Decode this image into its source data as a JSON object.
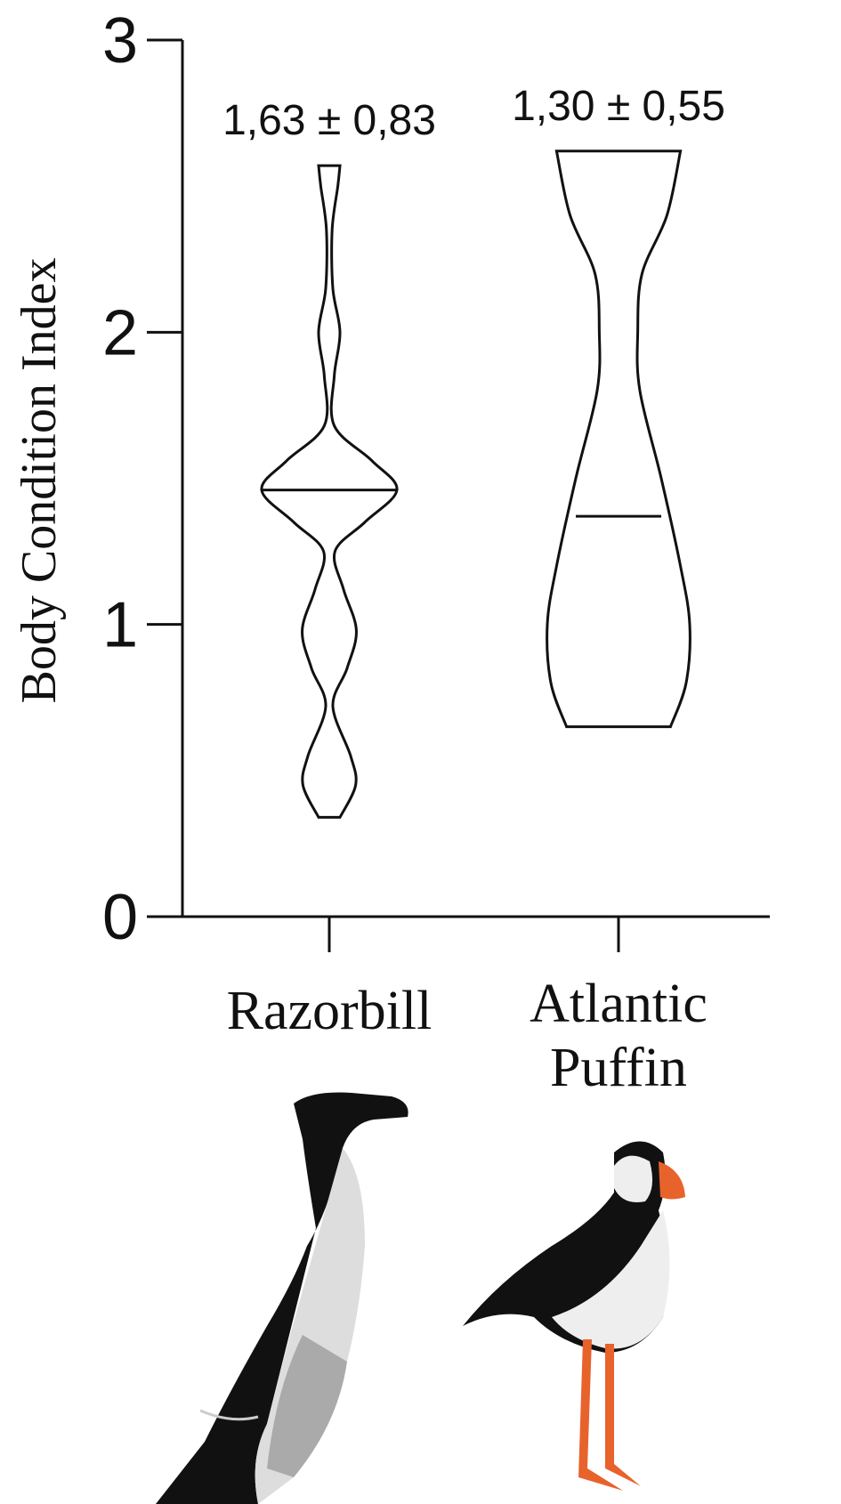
{
  "chart_data": {
    "type": "violin",
    "y_label": "Body Condition Index",
    "ylim": [
      0,
      3
    ],
    "yticks": [
      0,
      1,
      2,
      3
    ],
    "categories": [
      "Razorbill",
      "Atlantic Puffin"
    ],
    "annotations": [
      "1,63 ± 0,83",
      "1,30 ± 0,55"
    ],
    "groups": [
      {
        "min": 0.34,
        "max": 2.57,
        "median": 1.46,
        "profile_y": [
          0.34,
          0.45,
          0.55,
          0.72,
          0.85,
          0.98,
          1.12,
          1.25,
          1.35,
          1.46,
          1.56,
          1.68,
          1.85,
          2.0,
          2.15,
          2.35,
          2.5,
          2.57
        ],
        "profile_width": [
          0.15,
          0.37,
          0.3,
          0.05,
          0.25,
          0.38,
          0.2,
          0.08,
          0.5,
          0.95,
          0.6,
          0.07,
          0.07,
          0.15,
          0.05,
          0.04,
          0.12,
          0.15
        ]
      },
      {
        "min": 0.65,
        "max": 2.62,
        "median": 1.37,
        "profile_y": [
          0.65,
          0.8,
          1.0,
          1.2,
          1.5,
          1.8,
          2.0,
          2.2,
          2.4,
          2.62
        ],
        "profile_width": [
          0.73,
          0.95,
          1.0,
          0.87,
          0.6,
          0.3,
          0.27,
          0.33,
          0.68,
          0.87
        ]
      }
    ]
  }
}
